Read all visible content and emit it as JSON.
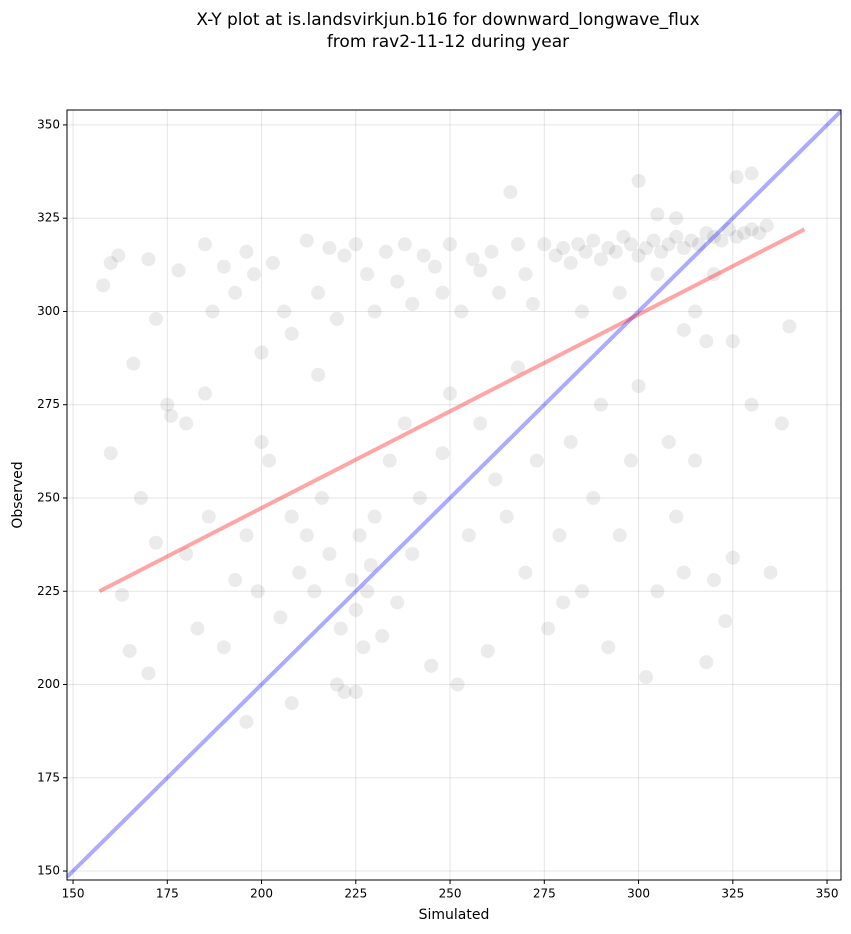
{
  "chart_data": {
    "type": "scatter",
    "title_lines": [
      "X-Y plot at is.landsvirkjun.b16 for downward_longwave_flux",
      "from rav2-11-12 during year"
    ],
    "x_label": "Simulated",
    "y_label": "Observed",
    "xlim": [
      148.4,
      353.7
    ],
    "ylim": [
      147.6,
      354
    ],
    "xticks": [
      150,
      175,
      200,
      225,
      250,
      275,
      300,
      325,
      350
    ],
    "yticks": [
      150,
      175,
      200,
      225,
      250,
      275,
      300,
      325,
      350
    ],
    "grid": true,
    "series": [
      {
        "color": "#000000",
        "opacity": 0.08,
        "points": [
          [
            158,
            307
          ],
          [
            160,
            313
          ],
          [
            162,
            315
          ],
          [
            166,
            286
          ],
          [
            170,
            314
          ],
          [
            172,
            298
          ],
          [
            175,
            275
          ],
          [
            178,
            311
          ],
          [
            180,
            270
          ],
          [
            185,
            318
          ],
          [
            187,
            300
          ],
          [
            190,
            312
          ],
          [
            193,
            305
          ],
          [
            196,
            316
          ],
          [
            198,
            310
          ],
          [
            200,
            289
          ],
          [
            203,
            313
          ],
          [
            206,
            300
          ],
          [
            208,
            294
          ],
          [
            212,
            319
          ],
          [
            215,
            305
          ],
          [
            218,
            317
          ],
          [
            220,
            298
          ],
          [
            222,
            315
          ],
          [
            225,
            318
          ],
          [
            228,
            310
          ],
          [
            230,
            300
          ],
          [
            233,
            316
          ],
          [
            236,
            308
          ],
          [
            238,
            318
          ],
          [
            240,
            302
          ],
          [
            243,
            315
          ],
          [
            246,
            312
          ],
          [
            248,
            305
          ],
          [
            250,
            318
          ],
          [
            253,
            300
          ],
          [
            256,
            314
          ],
          [
            258,
            311
          ],
          [
            261,
            316
          ],
          [
            263,
            305
          ],
          [
            266,
            332
          ],
          [
            268,
            318
          ],
          [
            270,
            310
          ],
          [
            272,
            302
          ],
          [
            275,
            318
          ],
          [
            278,
            315
          ],
          [
            280,
            317
          ],
          [
            282,
            313
          ],
          [
            284,
            318
          ],
          [
            286,
            316
          ],
          [
            288,
            319
          ],
          [
            290,
            314
          ],
          [
            292,
            317
          ],
          [
            294,
            316
          ],
          [
            296,
            320
          ],
          [
            298,
            318
          ],
          [
            300,
            315
          ],
          [
            302,
            317
          ],
          [
            304,
            319
          ],
          [
            306,
            316
          ],
          [
            308,
            318
          ],
          [
            310,
            320
          ],
          [
            312,
            317
          ],
          [
            314,
            319
          ],
          [
            316,
            318
          ],
          [
            318,
            321
          ],
          [
            320,
            320
          ],
          [
            322,
            319
          ],
          [
            324,
            322
          ],
          [
            326,
            320
          ],
          [
            328,
            321
          ],
          [
            330,
            322
          ],
          [
            332,
            321
          ],
          [
            334,
            323
          ],
          [
            300,
            335
          ],
          [
            305,
            326
          ],
          [
            310,
            325
          ],
          [
            326,
            336
          ],
          [
            330,
            337
          ],
          [
            320,
            310
          ],
          [
            312,
            295
          ],
          [
            318,
            292
          ],
          [
            325,
            292
          ],
          [
            315,
            300
          ],
          [
            305,
            310
          ],
          [
            295,
            305
          ],
          [
            285,
            300
          ],
          [
            160,
            262
          ],
          [
            163,
            224
          ],
          [
            168,
            250
          ],
          [
            172,
            238
          ],
          [
            176,
            272
          ],
          [
            180,
            235
          ],
          [
            183,
            215
          ],
          [
            186,
            245
          ],
          [
            190,
            210
          ],
          [
            193,
            228
          ],
          [
            196,
            240
          ],
          [
            199,
            225
          ],
          [
            202,
            260
          ],
          [
            205,
            218
          ],
          [
            208,
            245
          ],
          [
            210,
            230
          ],
          [
            212,
            240
          ],
          [
            214,
            225
          ],
          [
            216,
            250
          ],
          [
            218,
            235
          ],
          [
            220,
            200
          ],
          [
            221,
            215
          ],
          [
            222,
            198
          ],
          [
            224,
            228
          ],
          [
            225,
            220
          ],
          [
            226,
            240
          ],
          [
            227,
            210
          ],
          [
            228,
            225
          ],
          [
            229,
            232
          ],
          [
            230,
            245
          ],
          [
            232,
            213
          ],
          [
            234,
            260
          ],
          [
            236,
            222
          ],
          [
            238,
            270
          ],
          [
            240,
            235
          ],
          [
            242,
            250
          ],
          [
            245,
            205
          ],
          [
            248,
            262
          ],
          [
            250,
            278
          ],
          [
            252,
            200
          ],
          [
            255,
            240
          ],
          [
            258,
            270
          ],
          [
            262,
            255
          ],
          [
            265,
            245
          ],
          [
            268,
            285
          ],
          [
            270,
            230
          ],
          [
            273,
            260
          ],
          [
            276,
            215
          ],
          [
            279,
            240
          ],
          [
            282,
            265
          ],
          [
            285,
            225
          ],
          [
            288,
            250
          ],
          [
            290,
            275
          ],
          [
            292,
            210
          ],
          [
            295,
            240
          ],
          [
            298,
            260
          ],
          [
            300,
            280
          ],
          [
            302,
            202
          ],
          [
            305,
            225
          ],
          [
            308,
            265
          ],
          [
            310,
            245
          ],
          [
            312,
            230
          ],
          [
            315,
            260
          ],
          [
            318,
            206
          ],
          [
            320,
            228
          ],
          [
            323,
            217
          ],
          [
            325,
            234
          ],
          [
            330,
            275
          ],
          [
            335,
            230
          ],
          [
            338,
            270
          ],
          [
            340,
            296
          ],
          [
            196,
            190
          ],
          [
            208,
            195
          ],
          [
            225,
            198
          ],
          [
            260,
            209
          ],
          [
            280,
            222
          ],
          [
            165,
            209
          ],
          [
            170,
            203
          ],
          [
            185,
            278
          ],
          [
            200,
            265
          ],
          [
            215,
            283
          ]
        ]
      }
    ],
    "lines": [
      {
        "color": "#0000ff",
        "opacity": 0.33,
        "x": [
          148.4,
          353.7
        ],
        "y": [
          148.4,
          353.7
        ]
      },
      {
        "color": "#ff0000",
        "opacity": 0.35,
        "x": [
          157,
          344
        ],
        "y": [
          225,
          322
        ]
      }
    ]
  }
}
